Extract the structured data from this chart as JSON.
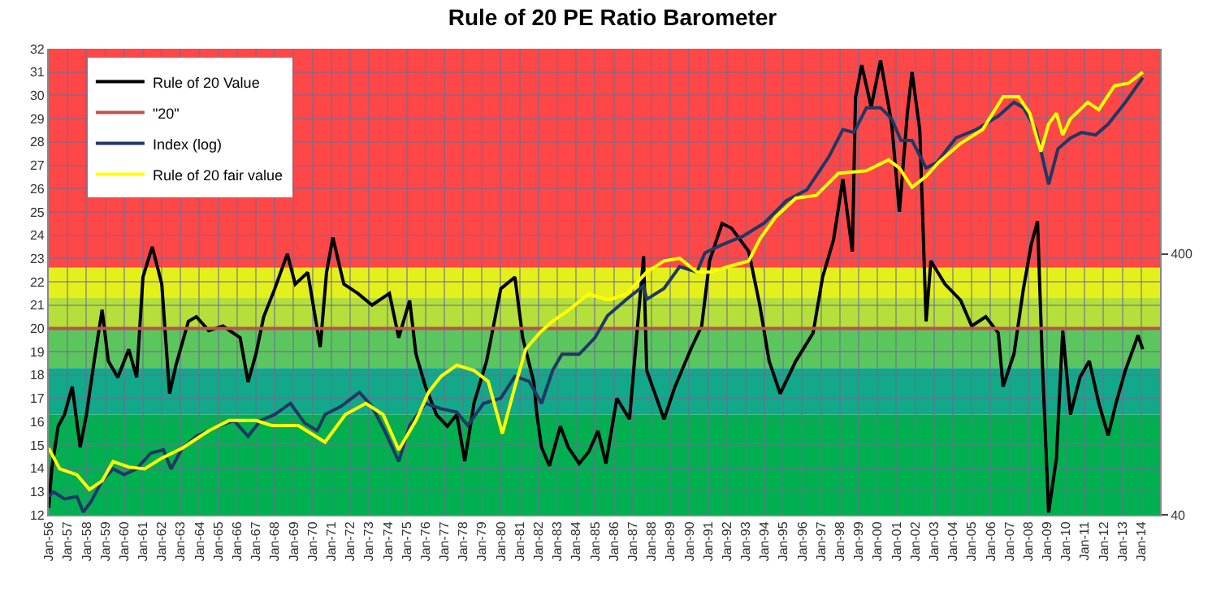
{
  "chart_data": {
    "type": "line",
    "title": "Rule of 20 PE Ratio Barometer",
    "xlim": [
      "1956-01",
      "2015-01"
    ],
    "xticks": [
      {
        "value": "1956-01",
        "label": "Jan-56"
      },
      {
        "value": "1957-01",
        "label": "Jan-57"
      },
      {
        "value": "1958-01",
        "label": "Jan-58"
      },
      {
        "value": "1959-01",
        "label": "Jan-59"
      },
      {
        "value": "1960-01",
        "label": "Jan-60"
      },
      {
        "value": "1961-01",
        "label": "Jan-61"
      },
      {
        "value": "1962-01",
        "label": "Jan-62"
      },
      {
        "value": "1963-01",
        "label": "Jan-63"
      },
      {
        "value": "1964-01",
        "label": "Jan-64"
      },
      {
        "value": "1965-01",
        "label": "Jan-65"
      },
      {
        "value": "1966-01",
        "label": "Jan-66"
      },
      {
        "value": "1967-01",
        "label": "Jan-67"
      },
      {
        "value": "1968-01",
        "label": "Jan-68"
      },
      {
        "value": "1969-01",
        "label": "Jan-69"
      },
      {
        "value": "1970-01",
        "label": "Jan-70"
      },
      {
        "value": "1971-01",
        "label": "Jan-71"
      },
      {
        "value": "1972-01",
        "label": "Jan-72"
      },
      {
        "value": "1973-01",
        "label": "Jan-73"
      },
      {
        "value": "1974-01",
        "label": "Jan-74"
      },
      {
        "value": "1975-01",
        "label": "Jan-75"
      },
      {
        "value": "1976-01",
        "label": "Jan-76"
      },
      {
        "value": "1977-01",
        "label": "Jan-77"
      },
      {
        "value": "1978-01",
        "label": "Jan-78"
      },
      {
        "value": "1979-01",
        "label": "Jan-79"
      },
      {
        "value": "1980-01",
        "label": "Jan-80"
      },
      {
        "value": "1981-01",
        "label": "Jan-81"
      },
      {
        "value": "1982-01",
        "label": "Jan-82"
      },
      {
        "value": "1983-01",
        "label": "Jan-83"
      },
      {
        "value": "1984-01",
        "label": "Jan-84"
      },
      {
        "value": "1985-01",
        "label": "Jan-85"
      },
      {
        "value": "1986-01",
        "label": "Jan-86"
      },
      {
        "value": "1987-01",
        "label": "Jan-87"
      },
      {
        "value": "1988-01",
        "label": "Jan-88"
      },
      {
        "value": "1989-01",
        "label": "Jan-89"
      },
      {
        "value": "1990-01",
        "label": "Jan-90"
      },
      {
        "value": "1991-01",
        "label": "Jan-91"
      },
      {
        "value": "1992-01",
        "label": "Jan-92"
      },
      {
        "value": "1993-01",
        "label": "Jan-93"
      },
      {
        "value": "1994-01",
        "label": "Jan-94"
      },
      {
        "value": "1995-01",
        "label": "Jan-95"
      },
      {
        "value": "1996-01",
        "label": "Jan-96"
      },
      {
        "value": "1997-01",
        "label": "Jan-97"
      },
      {
        "value": "1998-01",
        "label": "Jan-98"
      },
      {
        "value": "1999-01",
        "label": "Jan-99"
      },
      {
        "value": "2000-01",
        "label": "Jan-00"
      },
      {
        "value": "2001-01",
        "label": "Jan-01"
      },
      {
        "value": "2002-01",
        "label": "Jan-02"
      },
      {
        "value": "2003-01",
        "label": "Jan-03"
      },
      {
        "value": "2004-01",
        "label": "Jan-04"
      },
      {
        "value": "2005-01",
        "label": "Jan-05"
      },
      {
        "value": "2006-01",
        "label": "Jan-06"
      },
      {
        "value": "2007-01",
        "label": "Jan-07"
      },
      {
        "value": "2008-01",
        "label": "Jan-08"
      },
      {
        "value": "2009-01",
        "label": "Jan-09"
      },
      {
        "value": "2010-01",
        "label": "Jan-10"
      },
      {
        "value": "2011-01",
        "label": "Jan-11"
      },
      {
        "value": "2012-01",
        "label": "Jan-12"
      },
      {
        "value": "2013-01",
        "label": "Jan-13"
      },
      {
        "value": "2014-01",
        "label": "Jan-14"
      }
    ],
    "ylim": [
      12,
      32
    ],
    "yticks": [
      12,
      13,
      14,
      15,
      16,
      17,
      18,
      19,
      20,
      21,
      22,
      23,
      24,
      25,
      26,
      27,
      28,
      29,
      30,
      31,
      32
    ],
    "y2lim": [
      40,
      2450
    ],
    "y2ticks": [
      40,
      400
    ],
    "log": "y2",
    "grid": true,
    "legend": "top left",
    "bands": [
      {
        "axis": "y",
        "from": 22.6,
        "to": 32,
        "color": "#ff4747"
      },
      {
        "axis": "y",
        "from": 21.3,
        "to": 22.6,
        "color": "#e4f01c"
      },
      {
        "axis": "y",
        "from": 20,
        "to": 21.3,
        "color": "#b5df3a"
      },
      {
        "axis": "y",
        "from": 18.3,
        "to": 20,
        "color": "#5cc65e"
      },
      {
        "axis": "y",
        "from": 16.3,
        "to": 18.3,
        "color": "#12a88a"
      },
      {
        "axis": "y",
        "from": 12,
        "to": 16.3,
        "color": "#00b050"
      }
    ],
    "series": [
      {
        "name": "Rule of 20 Value",
        "color": "#000000",
        "x": [
          "1956-01",
          "1956-03",
          "1956-07",
          "1956-11",
          "1957-04",
          "1957-09",
          "1958-01",
          "1958-06",
          "1958-11",
          "1959-03",
          "1959-09",
          "1960-04",
          "1960-09",
          "1961-01",
          "1961-07",
          "1962-01",
          "1962-06",
          "1962-10",
          "1963-06",
          "1963-11",
          "1964-07",
          "1965-04",
          "1966-03",
          "1966-08",
          "1967-01",
          "1967-06",
          "1968-01",
          "1968-09",
          "1969-02",
          "1969-10",
          "1970-06",
          "1970-10",
          "1971-02",
          "1971-09",
          "1972-06",
          "1973-03",
          "1974-02",
          "1974-08",
          "1975-03",
          "1975-07",
          "1976-01",
          "1976-08",
          "1977-03",
          "1977-09",
          "1978-02",
          "1978-08",
          "1979-04",
          "1980-01",
          "1980-10",
          "1981-03",
          "1981-10",
          "1981-12",
          "1982-03",
          "1982-08",
          "1983-03",
          "1983-08",
          "1984-03",
          "1984-09",
          "1985-03",
          "1985-08",
          "1986-03",
          "1986-11",
          "1987-08",
          "1987-10",
          "1988-09",
          "1989-04",
          "1990-02",
          "1990-09",
          "1991-02",
          "1991-10",
          "1992-04",
          "1993-03",
          "1993-10",
          "1994-04",
          "1994-11",
          "1995-09",
          "1996-08",
          "1997-02",
          "1997-09",
          "1998-03",
          "1998-09",
          "1998-11",
          "1999-03",
          "1999-09",
          "2000-03",
          "2000-10",
          "2001-03",
          "2001-08",
          "2001-11",
          "2002-04",
          "2002-08",
          "2002-11",
          "2003-08",
          "2004-06",
          "2005-01",
          "2005-10",
          "2006-06",
          "2006-09",
          "2007-04",
          "2007-10",
          "2008-03",
          "2008-07",
          "2008-10",
          "2009-02",
          "2009-07",
          "2009-11",
          "2010-04",
          "2010-10",
          "2011-04",
          "2011-10",
          "2012-04",
          "2012-09",
          "2013-03",
          "2013-11",
          "2014-02"
        ],
        "values": [
          12.3,
          14.0,
          15.8,
          16.3,
          17.5,
          14.9,
          16.3,
          18.6,
          20.8,
          18.6,
          17.9,
          19.1,
          17.9,
          22.2,
          23.5,
          21.9,
          17.2,
          18.4,
          20.3,
          20.5,
          19.9,
          20.1,
          19.6,
          17.7,
          18.9,
          20.5,
          21.7,
          23.2,
          21.9,
          22.4,
          19.2,
          22.4,
          23.9,
          21.9,
          21.5,
          21.0,
          21.5,
          19.6,
          21.2,
          18.9,
          17.5,
          16.3,
          15.8,
          16.3,
          14.3,
          16.8,
          18.6,
          21.7,
          22.2,
          19.6,
          17.7,
          16.3,
          14.9,
          14.1,
          15.8,
          14.9,
          14.2,
          14.7,
          15.6,
          14.2,
          17.0,
          16.1,
          23.1,
          18.2,
          16.1,
          17.5,
          19.1,
          20.1,
          22.9,
          24.5,
          24.3,
          23.3,
          21.0,
          18.6,
          17.2,
          18.6,
          19.8,
          22.2,
          23.8,
          26.4,
          23.3,
          29.9,
          31.3,
          29.5,
          31.5,
          28.8,
          25.0,
          29.2,
          31.0,
          28.5,
          20.3,
          22.9,
          21.9,
          21.2,
          20.1,
          20.5,
          19.8,
          17.5,
          18.9,
          21.7,
          23.6,
          24.6,
          18.6,
          12.1,
          14.4,
          19.9,
          16.3,
          17.9,
          18.6,
          16.8,
          15.4,
          16.8,
          18.2,
          19.7,
          19.1
        ]
      },
      {
        "name": "\"20\"",
        "color": "#c0504d",
        "x": [
          "1956-01",
          "2015-01"
        ],
        "values": [
          20,
          20
        ]
      },
      {
        "name": "Index (log)",
        "color": "#1f3864",
        "axis": "y2",
        "x": [
          "1956-01",
          "1956-04",
          "1956-11",
          "1957-07",
          "1957-11",
          "1958-04",
          "1958-11",
          "1959-06",
          "1960-01",
          "1960-09",
          "1961-06",
          "1962-02",
          "1962-07",
          "1963-02",
          "1963-11",
          "1965-02",
          "1965-11",
          "1966-08",
          "1967-04",
          "1968-01",
          "1968-11",
          "1969-08",
          "1970-04",
          "1970-09",
          "1971-07",
          "1972-07",
          "1973-03",
          "1973-11",
          "1974-08",
          "1975-03",
          "1976-01",
          "1976-11",
          "1977-09",
          "1978-04",
          "1979-02",
          "1980-01",
          "1980-10",
          "1981-07",
          "1982-03",
          "1982-10",
          "1983-04",
          "1984-03",
          "1985-01",
          "1985-09",
          "1986-09",
          "1987-08",
          "1987-10",
          "1988-09",
          "1989-07",
          "1990-06",
          "1990-11",
          "1991-10",
          "1992-11",
          "1994-01",
          "1995-03",
          "1996-04",
          "1997-06",
          "1998-03",
          "1998-10",
          "1999-06",
          "2000-03",
          "2000-10",
          "2001-04",
          "2001-11",
          "2002-08",
          "2003-03",
          "2004-03",
          "2005-04",
          "2006-06",
          "2007-04",
          "2007-10",
          "2008-06",
          "2009-02",
          "2009-08",
          "2010-04",
          "2010-11",
          "2011-08",
          "2012-04",
          "2013-03",
          "2014-02"
        ],
        "values": [
          47,
          49,
          46,
          47,
          41,
          45,
          54,
          60,
          57,
          60,
          69,
          71,
          60,
          72,
          80,
          88,
          92,
          80,
          92,
          97,
          107,
          90,
          84,
          97,
          104,
          118,
          104,
          84,
          64,
          88,
          107,
          102,
          99,
          88,
          107,
          112,
          136,
          130,
          107,
          143,
          165,
          165,
          191,
          232,
          268,
          302,
          268,
          295,
          358,
          341,
          404,
          434,
          467,
          527,
          640,
          705,
          942,
          1200,
          1170,
          1455,
          1455,
          1321,
          1089,
          1089,
          855,
          898,
          1114,
          1200,
          1352,
          1527,
          1455,
          1200,
          740,
          1012,
          1114,
          1170,
          1144,
          1259,
          1527,
          1897
        ]
      },
      {
        "name": "Rule of 20 fair value",
        "color": "#ffff00",
        "axis": "y2",
        "x": [
          "1956-01",
          "1956-08",
          "1957-07",
          "1958-03",
          "1958-11",
          "1959-06",
          "1960-04",
          "1961-02",
          "1962-01",
          "1963-02",
          "1964-07",
          "1965-08",
          "1967-01",
          "1967-11",
          "1969-04",
          "1970-09",
          "1971-10",
          "1972-11",
          "1973-10",
          "1974-08",
          "1975-07",
          "1976-03",
          "1976-11",
          "1977-09",
          "1978-08",
          "1979-05",
          "1980-02",
          "1980-10",
          "1981-05",
          "1982-02",
          "1982-10",
          "1983-08",
          "1984-09",
          "1985-08",
          "1985-11",
          "1986-09",
          "1987-10",
          "1988-09",
          "1989-07",
          "1990-06",
          "1991-03",
          "1992-02",
          "1993-03",
          "1993-10",
          "1994-08",
          "1995-09",
          "1996-10",
          "1997-12",
          "1999-06",
          "2000-08",
          "2001-03",
          "2001-11",
          "2002-08",
          "2003-04",
          "2004-06",
          "2005-08",
          "2006-09",
          "2007-07",
          "2008-02",
          "2008-09",
          "2009-02",
          "2009-07",
          "2009-11",
          "2010-04",
          "2011-03",
          "2011-10",
          "2012-08",
          "2013-05",
          "2014-02"
        ],
        "values": [
          72,
          60,
          57,
          50,
          54,
          64,
          61,
          60,
          66,
          72,
          84,
          92,
          92,
          88,
          88,
          76,
          97,
          107,
          97,
          71,
          92,
          118,
          136,
          150,
          143,
          130,
          82,
          124,
          173,
          200,
          221,
          243,
          281,
          268,
          268,
          281,
          341,
          376,
          385,
          341,
          341,
          358,
          376,
          456,
          553,
          655,
          671,
          815,
          834,
          918,
          855,
          721,
          794,
          898,
          1062,
          1200,
          1602,
          1602,
          1387,
          988,
          1259,
          1387,
          1144,
          1321,
          1527,
          1430,
          1766,
          1807,
          1991
        ]
      }
    ]
  }
}
